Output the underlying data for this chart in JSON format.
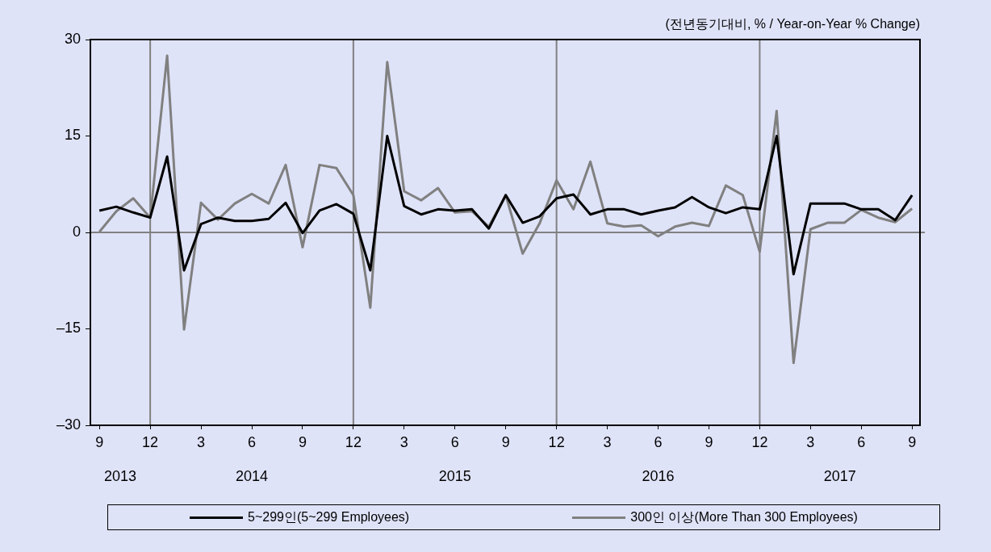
{
  "chart_data": {
    "type": "line",
    "ylabel": "(전년동기대비, % / Year-on-Year % Change)",
    "x": [
      "2013-09",
      "2013-10",
      "2013-11",
      "2013-12",
      "2014-01",
      "2014-02",
      "2014-03",
      "2014-04",
      "2014-05",
      "2014-06",
      "2014-07",
      "2014-08",
      "2014-09",
      "2014-10",
      "2014-11",
      "2014-12",
      "2015-01",
      "2015-02",
      "2015-03",
      "2015-04",
      "2015-05",
      "2015-06",
      "2015-07",
      "2015-08",
      "2015-09",
      "2015-10",
      "2015-11",
      "2015-12",
      "2016-01",
      "2016-02",
      "2016-03",
      "2016-04",
      "2016-05",
      "2016-06",
      "2016-07",
      "2016-08",
      "2016-09",
      "2016-10",
      "2016-11",
      "2016-12",
      "2017-01",
      "2017-02",
      "2017-03",
      "2017-04",
      "2017-05",
      "2017-06",
      "2017-07",
      "2017-08",
      "2017-09"
    ],
    "series": [
      {
        "name": "5~299인(5~299 Employees)",
        "color": "#000000",
        "values": [
          3.4,
          4.0,
          3.1,
          2.3,
          11.8,
          -5.9,
          1.3,
          2.3,
          1.8,
          1.8,
          2.1,
          4.6,
          -0.1,
          3.4,
          4.4,
          2.9,
          -5.9,
          15.0,
          4.1,
          2.8,
          3.6,
          3.4,
          3.6,
          0.6,
          5.8,
          1.5,
          2.5,
          5.3,
          5.9,
          2.8,
          3.6,
          3.6,
          2.8,
          3.4,
          3.9,
          5.5,
          3.9,
          3.0,
          3.9,
          3.6,
          15.0,
          -6.5,
          4.5,
          4.5,
          4.5,
          3.6,
          3.6,
          1.9,
          5.8
        ]
      },
      {
        "name": "300인 이상(More Than 300 Employees)",
        "color": "#808080",
        "values": [
          0.1,
          3.3,
          5.3,
          2.3,
          27.5,
          -15.1,
          4.6,
          2.0,
          4.5,
          6.0,
          4.5,
          10.5,
          -2.3,
          10.5,
          10.0,
          5.8,
          -11.7,
          26.5,
          6.4,
          5.0,
          6.9,
          3.1,
          3.3,
          0.9,
          5.8,
          -3.3,
          1.4,
          8.1,
          3.6,
          11.0,
          1.4,
          0.9,
          1.1,
          -0.6,
          0.9,
          1.5,
          1.0,
          7.3,
          5.8,
          -3.0,
          18.9,
          -20.3,
          0.5,
          1.5,
          1.5,
          3.5,
          2.3,
          1.6,
          3.7
        ]
      }
    ],
    "xlim": [
      "2013-08-15",
      "2017-09-15"
    ],
    "xticks": [
      {
        "value": "2013-09",
        "label": "9"
      },
      {
        "value": "2013-12",
        "label": "12"
      },
      {
        "value": "2014-03",
        "label": "3"
      },
      {
        "value": "2014-06",
        "label": "6"
      },
      {
        "value": "2014-09",
        "label": "9"
      },
      {
        "value": "2014-12",
        "label": "12"
      },
      {
        "value": "2015-03",
        "label": "3"
      },
      {
        "value": "2015-06",
        "label": "6"
      },
      {
        "value": "2015-09",
        "label": "9"
      },
      {
        "value": "2015-12",
        "label": "12"
      },
      {
        "value": "2016-03",
        "label": "3"
      },
      {
        "value": "2016-06",
        "label": "6"
      },
      {
        "value": "2016-09",
        "label": "9"
      },
      {
        "value": "2016-12",
        "label": "12"
      },
      {
        "value": "2017-03",
        "label": "3"
      },
      {
        "value": "2017-06",
        "label": "6"
      },
      {
        "value": "2017-09",
        "label": "9"
      }
    ],
    "ylim": [
      -30,
      30
    ],
    "yticks": [
      {
        "value": -30,
        "label": "–30"
      },
      {
        "value": -15,
        "label": "–15"
      },
      0,
      15,
      30
    ],
    "ref_lines": [
      {
        "axis": "y",
        "value": 0,
        "color": "#808080"
      },
      {
        "axis": "x",
        "value": "2013-12",
        "color": "#808080"
      },
      {
        "axis": "x",
        "value": "2014-12",
        "color": "#808080"
      },
      {
        "axis": "x",
        "value": "2015-12",
        "color": "#808080"
      },
      {
        "axis": "x",
        "value": "2016-12",
        "color": "#808080"
      }
    ],
    "annotations": [
      "2013",
      "2014",
      "2015",
      "2016",
      "2017"
    ],
    "legend": "bottom",
    "marker": "none",
    "line_style": "solid"
  }
}
